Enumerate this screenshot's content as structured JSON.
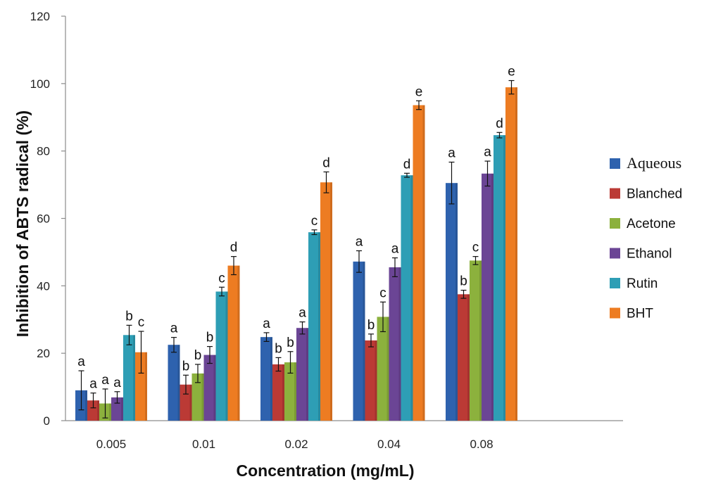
{
  "chart_data": {
    "type": "bar",
    "title": "",
    "xlabel": "Concentration (mg/mL)",
    "ylabel": "Inhibition of ABTS radical (%)",
    "ylim": [
      0,
      120
    ],
    "yticks": [
      "0",
      "20",
      "40",
      "60",
      "80",
      "100",
      "120"
    ],
    "categories": [
      "0.005",
      "0.01",
      "0.02",
      "0.04",
      "0.08"
    ],
    "grid": false,
    "legend_position": "right",
    "series": [
      {
        "name": "Aqueous",
        "color": "#2E62AE",
        "values": [
          9,
          22.5,
          24.8,
          47.2,
          70.5
        ],
        "errors": [
          5.8,
          2.2,
          1.3,
          3.2,
          6.2
        ],
        "labels": [
          "a",
          "a",
          "a",
          "a",
          "a"
        ]
      },
      {
        "name": "Blanched",
        "color": "#BB3A35",
        "values": [
          6,
          10.7,
          16.7,
          23.8,
          37.5
        ],
        "errors": [
          2.2,
          2.8,
          2.0,
          1.9,
          1.2
        ],
        "labels": [
          "a",
          "b",
          "b",
          "b",
          "b"
        ]
      },
      {
        "name": "Acetone",
        "color": "#8CB13D",
        "values": [
          5.1,
          14,
          17.3,
          30.8,
          47.5
        ],
        "errors": [
          4.3,
          2.7,
          3.2,
          4.4,
          1.2
        ],
        "labels": [
          "a",
          "b",
          "b",
          "c",
          "c"
        ]
      },
      {
        "name": "Ethanol",
        "color": "#6B4595",
        "values": [
          6.9,
          19.5,
          27.5,
          45.5,
          73.3
        ],
        "errors": [
          1.7,
          2.5,
          1.8,
          2.8,
          3.7
        ],
        "labels": [
          "a",
          "b",
          "a",
          "a",
          "a"
        ]
      },
      {
        "name": "Rutin",
        "color": "#2E9EB5",
        "values": [
          25.4,
          38.3,
          55.9,
          72.8,
          84.7
        ],
        "errors": [
          2.9,
          1.3,
          0.7,
          0.6,
          0.8
        ],
        "labels": [
          "b",
          "c",
          "c",
          "d",
          "d"
        ]
      },
      {
        "name": "BHT",
        "color": "#ED7C22",
        "values": [
          20.3,
          46,
          70.7,
          93.6,
          98.9
        ],
        "errors": [
          6.2,
          2.7,
          3.1,
          1.3,
          2.0
        ],
        "labels": [
          "c",
          "d",
          "d",
          "e",
          "e"
        ]
      }
    ]
  }
}
